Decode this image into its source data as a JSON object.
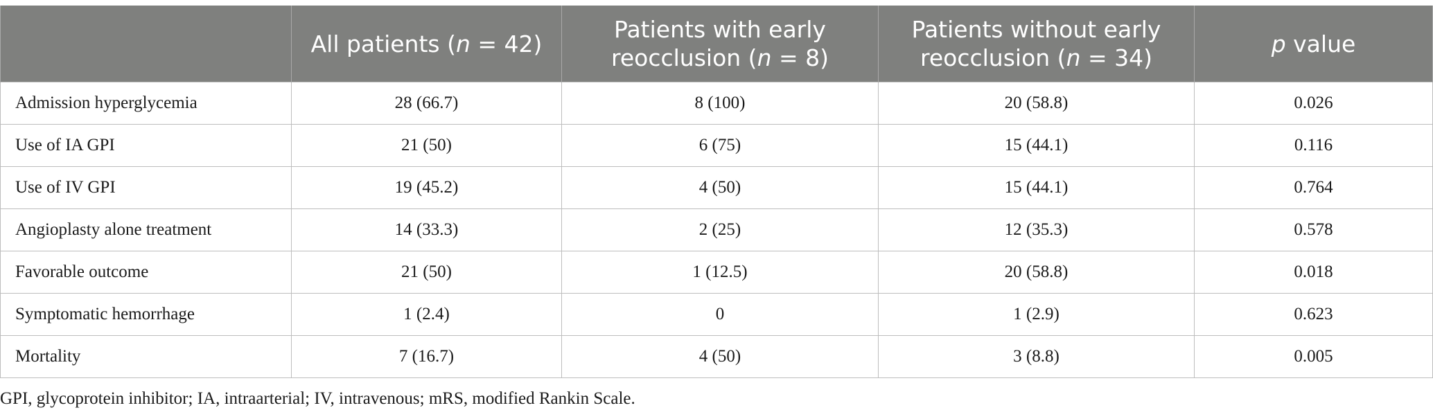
{
  "table": {
    "headers": [
      {
        "pre": "",
        "ital": "",
        "post": ""
      },
      {
        "pre": "All patients (",
        "ital": "n",
        "post": " = 42)"
      },
      {
        "pre": "Patients with early reocclusion (",
        "ital": "n",
        "post": " = 8)"
      },
      {
        "pre": "Patients without early reocclusion (",
        "ital": "n",
        "post": " = 34)"
      },
      {
        "pre": "",
        "ital": "p",
        "post": " value"
      }
    ],
    "rows": [
      [
        "Admission hyperglycemia",
        "28 (66.7)",
        "8 (100)",
        "20 (58.8)",
        "0.026"
      ],
      [
        "Use of IA GPI",
        "21 (50)",
        "6 (75)",
        "15 (44.1)",
        "0.116"
      ],
      [
        "Use of IV GPI",
        "19 (45.2)",
        "4 (50)",
        "15 (44.1)",
        "0.764"
      ],
      [
        "Angioplasty alone treatment",
        "14 (33.3)",
        "2 (25)",
        "12 (35.3)",
        "0.578"
      ],
      [
        "Favorable outcome",
        "21 (50)",
        "1 (12.5)",
        "20 (58.8)",
        "0.018"
      ],
      [
        "Symptomatic hemorrhage",
        "1 (2.4)",
        "0",
        "1 (2.9)",
        "0.623"
      ],
      [
        "Mortality",
        "7 (16.7)",
        "4 (50)",
        "3 (8.8)",
        "0.005"
      ]
    ]
  },
  "footnote": "GPI, glycoprotein inhibitor; IA, intraarterial; IV, intravenous; mRS, modified Rankin Scale."
}
